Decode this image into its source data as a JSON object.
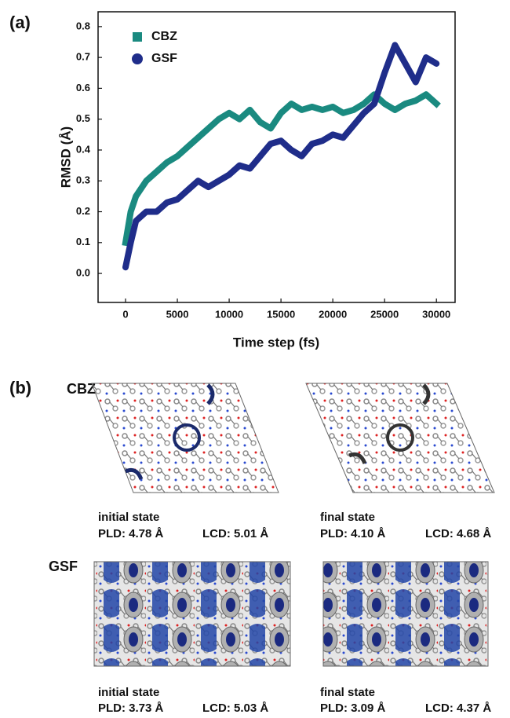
{
  "panel_a": {
    "label": "(a)"
  },
  "chart_data": {
    "type": "line",
    "x_label": "Time step (fs)",
    "y_label": "RMSD (Å)",
    "xlim": [
      -2650,
      31800
    ],
    "xticks": [
      0,
      5000,
      10000,
      15000,
      20000,
      25000,
      30000
    ],
    "ylim": [
      -0.094,
      0.848
    ],
    "yticks": [
      {
        "value": 0,
        "label": "0.0"
      },
      0.1,
      0.2,
      0.3,
      0.4,
      0.5,
      0.6,
      0.7,
      0.8
    ],
    "legend": "upper left",
    "x": [
      0,
      500,
      1000,
      2000,
      3000,
      4000,
      5000,
      6000,
      7000,
      8000,
      9000,
      10000,
      11000,
      12000,
      13000,
      14000,
      15000,
      16000,
      17000,
      18000,
      19000,
      20000,
      21000,
      22000,
      23000,
      24000,
      25000,
      26000,
      27000,
      28000,
      29000,
      30000
    ],
    "series": [
      {
        "name": "CBZ",
        "color": "#1a8a80",
        "marker": "square",
        "values": [
          0.1,
          0.2,
          0.25,
          0.3,
          0.33,
          0.36,
          0.38,
          0.41,
          0.44,
          0.47,
          0.5,
          0.52,
          0.5,
          0.53,
          0.49,
          0.47,
          0.52,
          0.55,
          0.53,
          0.54,
          0.53,
          0.54,
          0.52,
          0.53,
          0.55,
          0.58,
          0.55,
          0.53,
          0.55,
          0.56,
          0.58,
          0.55
        ]
      },
      {
        "name": "GSF",
        "color": "#1f2d8a",
        "marker": "circle",
        "values": [
          0.02,
          0.1,
          0.17,
          0.2,
          0.2,
          0.23,
          0.24,
          0.27,
          0.3,
          0.28,
          0.3,
          0.32,
          0.35,
          0.34,
          0.38,
          0.42,
          0.43,
          0.4,
          0.38,
          0.42,
          0.43,
          0.45,
          0.44,
          0.48,
          0.52,
          0.55,
          0.65,
          0.74,
          0.68,
          0.62,
          0.7,
          0.68
        ]
      }
    ]
  },
  "panel_b": {
    "label": "(b)",
    "rows": [
      {
        "name": "CBZ",
        "states": [
          {
            "state": "initial state",
            "pld": "PLD: 4.78 Å",
            "lcd": "LCD: 5.01 Å"
          },
          {
            "state": "final state",
            "pld": "PLD: 4.10 Å",
            "lcd": "LCD: 4.68 Å"
          }
        ]
      },
      {
        "name": "GSF",
        "states": [
          {
            "state": "initial state",
            "pld": "PLD: 3.73 Å",
            "lcd": "LCD: 5.03 Å"
          },
          {
            "state": "final state",
            "pld": "PLD: 3.09 Å",
            "lcd": "LCD: 4.37 Å"
          }
        ]
      }
    ]
  }
}
